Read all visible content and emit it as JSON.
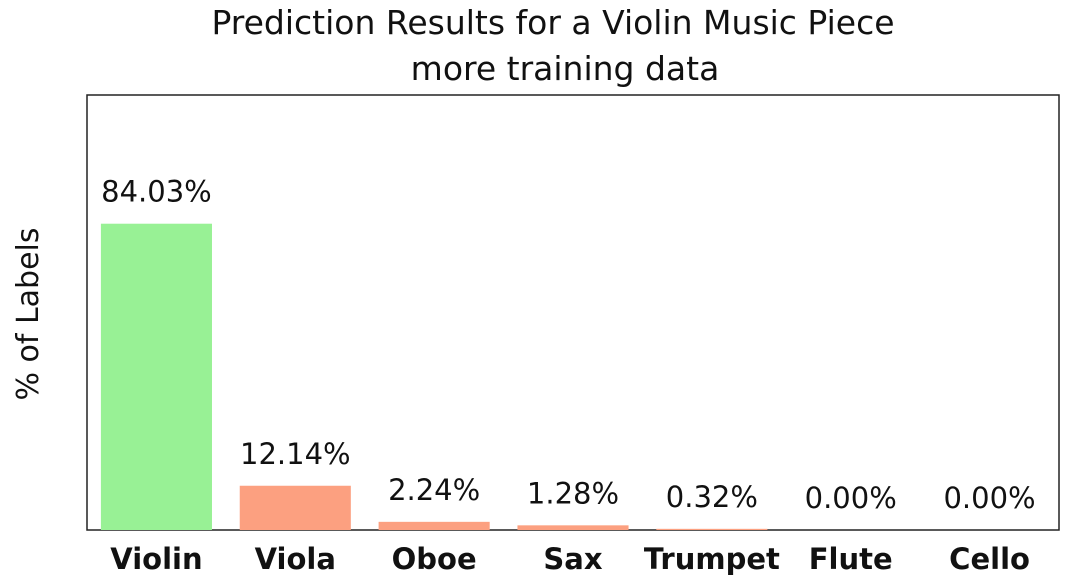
{
  "chart_data": {
    "type": "bar",
    "title": "Prediction Results for a Violin Music Piece",
    "subtitle": "more training data",
    "xlabel": "",
    "ylabel": "% of Labels",
    "categories": [
      "Violin",
      "Viola",
      "Oboe",
      "Sax",
      "Trumpet",
      "Flute",
      "Cello"
    ],
    "values": [
      84.03,
      12.14,
      2.24,
      1.28,
      0.32,
      0.0,
      0.0
    ],
    "value_labels": [
      "84.03%",
      "12.14%",
      "2.24%",
      "1.28%",
      "0.32%",
      "0.00%",
      "0.00%"
    ],
    "ylim": [
      0,
      100
    ],
    "grid": false,
    "highlight_color": "#98f195",
    "bar_color": "#fca080"
  }
}
